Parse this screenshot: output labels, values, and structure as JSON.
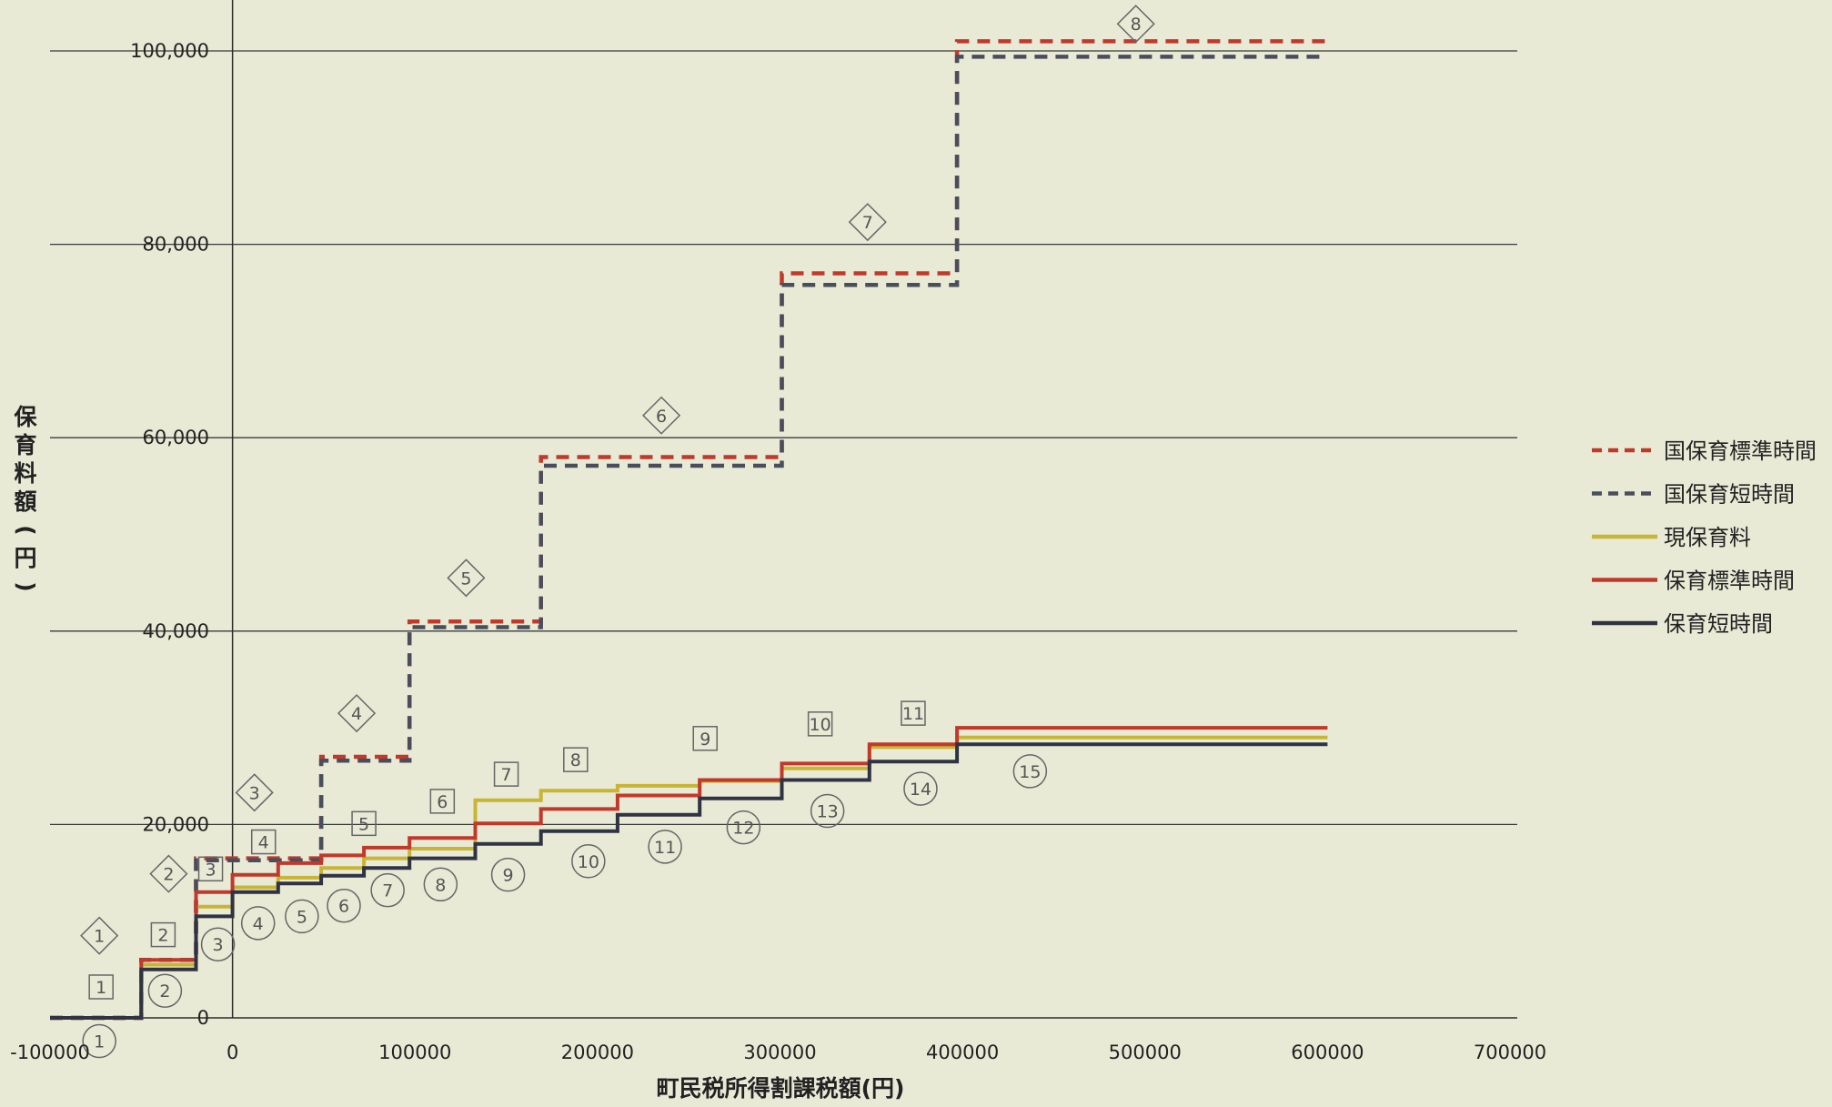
{
  "chart_data": {
    "type": "line",
    "title": "",
    "xlabel": "町民税所得割課税額(円)",
    "ylabel": "保育料額(円)",
    "xlim": [
      -100000,
      700000
    ],
    "ylim": [
      0,
      100000
    ],
    "x_ticks": [
      -100000,
      0,
      100000,
      200000,
      300000,
      400000,
      500000,
      600000,
      700000
    ],
    "x_tick_labels": [
      "-100000",
      "0",
      "100000",
      "200000",
      "300000",
      "400000",
      "500000",
      "600000",
      "700000"
    ],
    "y_ticks": [
      0,
      20000,
      40000,
      60000,
      80000,
      100000
    ],
    "y_tick_labels": [
      "0",
      "20,000",
      "40,000",
      "60,000",
      "80,000",
      "100,000"
    ],
    "grid": "horizontal",
    "legend_position": "right",
    "series": [
      {
        "name": "国保育標準時間",
        "style": "dashed",
        "color": "#c0392b",
        "x": [
          -100000,
          -50000,
          -50000,
          -20000,
          -20000,
          48600,
          48600,
          97000,
          97000,
          169000,
          169000,
          301000,
          301000,
          397000,
          397000,
          600000
        ],
        "y": [
          0,
          0,
          6000,
          6000,
          16500,
          16500,
          27000,
          27000,
          41000,
          41000,
          58000,
          58000,
          77000,
          77000,
          101000,
          101000
        ]
      },
      {
        "name": "国保育短時間",
        "style": "dashed",
        "color": "#4a4e5c",
        "x": [
          -100000,
          -50000,
          -50000,
          -20000,
          -20000,
          48600,
          48600,
          97000,
          97000,
          169000,
          169000,
          301000,
          301000,
          397000,
          397000,
          600000
        ],
        "y": [
          0,
          0,
          6000,
          6000,
          16300,
          16300,
          26600,
          26600,
          40400,
          40400,
          57100,
          57100,
          75800,
          75800,
          99400,
          99400
        ]
      },
      {
        "name": "現保育料",
        "style": "solid",
        "color": "#c8b535",
        "x": [
          -100000,
          -50000,
          -50000,
          -20000,
          -20000,
          0,
          0,
          25000,
          25000,
          48600,
          48600,
          72000,
          72000,
          97000,
          97000,
          133000,
          133000,
          169000,
          169000,
          211000,
          211000,
          256000,
          256000,
          301000,
          301000,
          349000,
          349000,
          397000,
          397000,
          600000
        ],
        "y": [
          0,
          0,
          5500,
          5500,
          11500,
          11500,
          13500,
          13500,
          14500,
          14500,
          15500,
          15500,
          16500,
          16500,
          17500,
          17500,
          22500,
          22500,
          23500,
          23500,
          24000,
          24000,
          24500,
          24500,
          25800,
          25800,
          28000,
          28000,
          29000,
          29000
        ]
      },
      {
        "name": "保育標準時間",
        "style": "solid",
        "color": "#c0392b",
        "x": [
          -100000,
          -50000,
          -50000,
          -20000,
          -20000,
          0,
          0,
          25000,
          25000,
          48600,
          48600,
          72000,
          72000,
          97000,
          97000,
          133000,
          133000,
          169000,
          169000,
          211000,
          211000,
          256000,
          256000,
          301000,
          301000,
          349000,
          349000,
          397000,
          397000,
          600000
        ],
        "y": [
          0,
          0,
          6000,
          6000,
          13000,
          13000,
          14800,
          14800,
          16000,
          16000,
          16800,
          16800,
          17600,
          17600,
          18600,
          18600,
          20100,
          20100,
          21600,
          21600,
          23000,
          23000,
          24600,
          24600,
          26300,
          26300,
          28300,
          28300,
          30000,
          30000
        ]
      },
      {
        "name": "保育短時間",
        "style": "solid",
        "color": "#2f3342",
        "x": [
          -100000,
          -50000,
          -50000,
          -20000,
          -20000,
          0,
          0,
          25000,
          25000,
          48600,
          48600,
          72000,
          72000,
          97000,
          97000,
          133000,
          133000,
          169000,
          169000,
          211000,
          211000,
          256000,
          256000,
          301000,
          301000,
          349000,
          349000,
          397000,
          397000,
          600000
        ],
        "y": [
          0,
          0,
          5000,
          5000,
          10500,
          10500,
          13000,
          13000,
          13900,
          13900,
          14700,
          14700,
          15500,
          15500,
          16500,
          16500,
          18000,
          18000,
          19300,
          19300,
          21000,
          21000,
          22700,
          22700,
          24600,
          24600,
          26500,
          26500,
          28300,
          28300
        ]
      }
    ],
    "annotations": [
      {
        "text": "1",
        "shape": "diamond",
        "x": -73000,
        "y": 8500
      },
      {
        "text": "2",
        "shape": "diamond",
        "x": -35000,
        "y": 14900
      },
      {
        "text": "3",
        "shape": "diamond",
        "x": 12000,
        "y": 23300
      },
      {
        "text": "4",
        "shape": "diamond",
        "x": 68000,
        "y": 31500
      },
      {
        "text": "5",
        "shape": "diamond",
        "x": 128000,
        "y": 45500
      },
      {
        "text": "6",
        "shape": "diamond",
        "x": 235000,
        "y": 62300
      },
      {
        "text": "7",
        "shape": "diamond",
        "x": 348000,
        "y": 82300
      },
      {
        "text": "8",
        "shape": "diamond",
        "x": 495000,
        "y": 102800
      },
      {
        "text": "1",
        "shape": "square",
        "x": -72000,
        "y": 3200
      },
      {
        "text": "2",
        "shape": "square",
        "x": -38000,
        "y": 8600
      },
      {
        "text": "3",
        "shape": "square",
        "x": -12000,
        "y": 15400
      },
      {
        "text": "4",
        "shape": "square",
        "x": 17000,
        "y": 18200
      },
      {
        "text": "5",
        "shape": "square",
        "x": 72000,
        "y": 20100
      },
      {
        "text": "6",
        "shape": "square",
        "x": 115000,
        "y": 22400
      },
      {
        "text": "7",
        "shape": "square",
        "x": 150000,
        "y": 25200
      },
      {
        "text": "8",
        "shape": "square",
        "x": 188000,
        "y": 26700
      },
      {
        "text": "9",
        "shape": "square",
        "x": 259000,
        "y": 28900
      },
      {
        "text": "10",
        "shape": "square",
        "x": 322000,
        "y": 30400
      },
      {
        "text": "11",
        "shape": "square",
        "x": 373000,
        "y": 31500
      },
      {
        "text": "1",
        "shape": "circle",
        "x": -73000,
        "y": -2400
      },
      {
        "text": "2",
        "shape": "circle",
        "x": -37000,
        "y": 2800
      },
      {
        "text": "3",
        "shape": "circle",
        "x": -8000,
        "y": 7600
      },
      {
        "text": "4",
        "shape": "circle",
        "x": 14000,
        "y": 9800
      },
      {
        "text": "5",
        "shape": "circle",
        "x": 38000,
        "y": 10500
      },
      {
        "text": "6",
        "shape": "circle",
        "x": 61000,
        "y": 11600
      },
      {
        "text": "7",
        "shape": "circle",
        "x": 85000,
        "y": 13200
      },
      {
        "text": "8",
        "shape": "circle",
        "x": 114000,
        "y": 13800
      },
      {
        "text": "9",
        "shape": "circle",
        "x": 151000,
        "y": 14800
      },
      {
        "text": "10",
        "shape": "circle",
        "x": 195000,
        "y": 16200
      },
      {
        "text": "11",
        "shape": "circle",
        "x": 237000,
        "y": 17700
      },
      {
        "text": "12",
        "shape": "circle",
        "x": 280000,
        "y": 19700
      },
      {
        "text": "13",
        "shape": "circle",
        "x": 326000,
        "y": 21400
      },
      {
        "text": "14",
        "shape": "circle",
        "x": 377000,
        "y": 23700
      },
      {
        "text": "15",
        "shape": "circle",
        "x": 437000,
        "y": 25500
      }
    ]
  }
}
